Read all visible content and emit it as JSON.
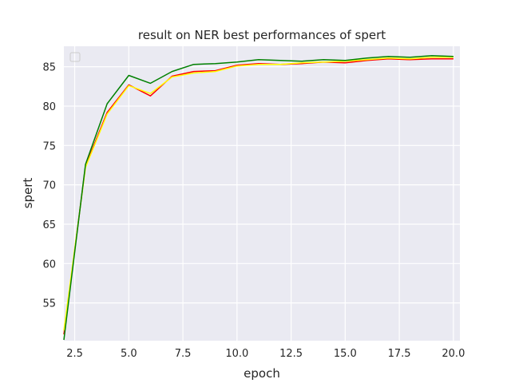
{
  "chart_data": {
    "type": "line",
    "title": "result on NER  best performances of spert",
    "xlabel": "epoch",
    "ylabel": "spert",
    "xlim": [
      2.0,
      20.3
    ],
    "ylim": [
      50.2,
      87.6
    ],
    "xticks": [
      2.5,
      5.0,
      7.5,
      10.0,
      12.5,
      15.0,
      17.5,
      20.0
    ],
    "xtick_labels": [
      "2.5",
      "5.0",
      "7.5",
      "10.0",
      "12.5",
      "15.0",
      "17.5",
      "20.0"
    ],
    "yticks": [
      55,
      60,
      65,
      70,
      75,
      80,
      85
    ],
    "ytick_labels": [
      "55",
      "60",
      "65",
      "70",
      "75",
      "80",
      "85"
    ],
    "grid": true,
    "legend": "top-left (empty)",
    "x": [
      2,
      3,
      4,
      5,
      6,
      7,
      8,
      9,
      10,
      11,
      12,
      13,
      14,
      15,
      16,
      17,
      18,
      19,
      20
    ],
    "series": [
      {
        "color": "#ff0000",
        "values": [
          51.0,
          72.4,
          79.2,
          82.7,
          81.3,
          83.8,
          84.4,
          84.5,
          85.2,
          85.4,
          85.3,
          85.4,
          85.6,
          85.5,
          85.8,
          86.0,
          85.9,
          86.0,
          86.0
        ]
      },
      {
        "color": "#ffff00",
        "values": [
          51.5,
          72.2,
          79.0,
          82.6,
          81.6,
          83.7,
          84.2,
          84.4,
          85.1,
          85.3,
          85.3,
          85.5,
          85.6,
          85.7,
          85.9,
          86.1,
          86.0,
          86.2,
          86.2
        ]
      },
      {
        "color": "#008000",
        "values": [
          50.3,
          72.6,
          80.3,
          83.9,
          82.9,
          84.4,
          85.3,
          85.4,
          85.6,
          85.9,
          85.8,
          85.7,
          85.9,
          85.8,
          86.1,
          86.3,
          86.2,
          86.4,
          86.3
        ]
      }
    ]
  }
}
